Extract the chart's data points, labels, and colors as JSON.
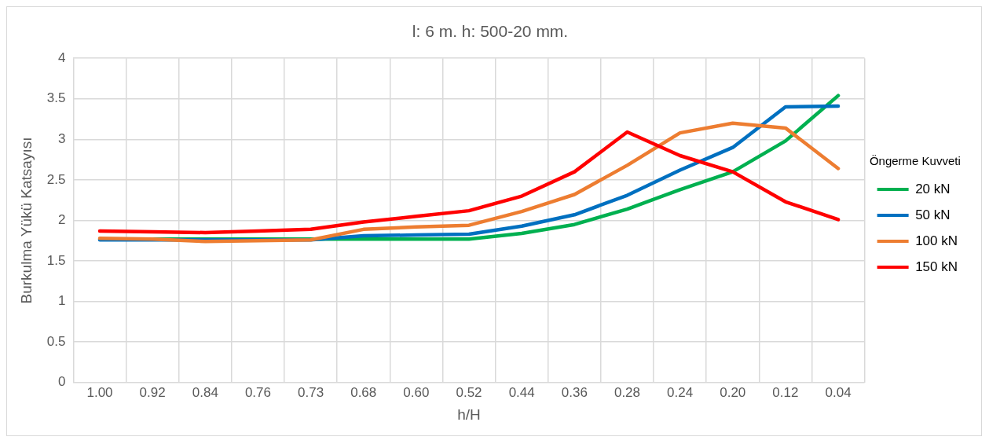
{
  "chart_data": {
    "type": "line",
    "title": "l: 6 m. h: 500-20 mm.",
    "xlabel": "h/H",
    "ylabel": "Burkulma Yükü Katsayısı",
    "legend_title": "Öngerme Kuvveti",
    "categories": [
      "1.00",
      "0.92",
      "0.84",
      "0.76",
      "0.73",
      "0.68",
      "0.60",
      "0.52",
      "0.44",
      "0.36",
      "0.28",
      "0.24",
      "0.20",
      "0.12",
      "0.04"
    ],
    "series": [
      {
        "name": "20 kN",
        "color": "#00b050",
        "values": [
          1.77,
          1.77,
          1.77,
          1.77,
          1.77,
          1.77,
          1.77,
          1.77,
          1.84,
          1.95,
          2.14,
          2.38,
          2.6,
          2.98,
          3.54
        ]
      },
      {
        "name": "50 kN",
        "color": "#0070c0",
        "values": [
          1.76,
          1.76,
          1.76,
          1.76,
          1.76,
          1.81,
          1.82,
          1.83,
          1.93,
          2.07,
          2.31,
          2.62,
          2.9,
          3.4,
          3.41
        ]
      },
      {
        "name": "100 kN",
        "color": "#ed7d31",
        "values": [
          1.78,
          1.77,
          1.74,
          1.75,
          1.76,
          1.89,
          1.92,
          1.94,
          2.11,
          2.32,
          2.68,
          3.08,
          3.2,
          3.14,
          2.64
        ]
      },
      {
        "name": "150 kN",
        "color": "#ff0000",
        "values": [
          1.87,
          1.86,
          1.85,
          1.87,
          1.89,
          1.98,
          2.05,
          2.12,
          2.3,
          2.6,
          3.09,
          2.8,
          2.6,
          2.23,
          2.01
        ]
      }
    ],
    "ylim": [
      0,
      4
    ],
    "yticks": [
      0,
      0.5,
      1,
      1.5,
      2,
      2.5,
      3,
      3.5,
      4
    ],
    "grid": true,
    "legend": "right",
    "marker": "none",
    "line_style": "solid"
  }
}
